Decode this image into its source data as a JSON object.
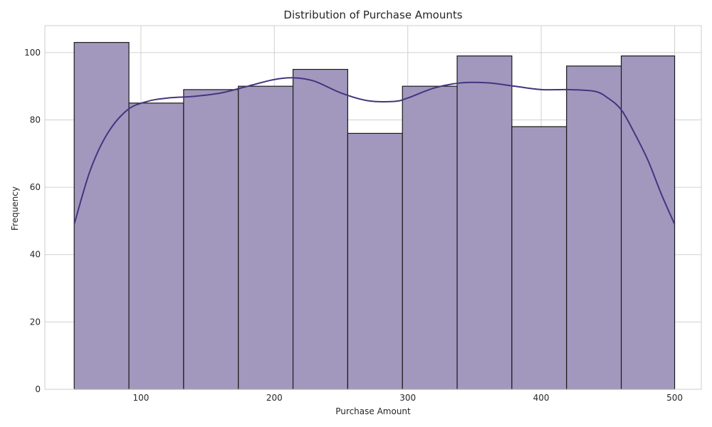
{
  "chart_data": {
    "type": "histogram",
    "title": "Distribution of Purchase Amounts",
    "xlabel": "Purchase Amount",
    "ylabel": "Frequency",
    "xlim": [
      28,
      520
    ],
    "ylim": [
      0,
      108
    ],
    "xticks": [
      100,
      200,
      300,
      400,
      500
    ],
    "yticks": [
      0,
      20,
      40,
      60,
      80,
      100
    ],
    "grid": true,
    "bins": [
      {
        "start": 50,
        "end": 91,
        "count": 103
      },
      {
        "start": 91,
        "end": 132,
        "count": 85
      },
      {
        "start": 132,
        "end": 173,
        "count": 89
      },
      {
        "start": 173,
        "end": 214,
        "count": 90
      },
      {
        "start": 214,
        "end": 255,
        "count": 95
      },
      {
        "start": 255,
        "end": 296,
        "count": 76
      },
      {
        "start": 296,
        "end": 337,
        "count": 90
      },
      {
        "start": 337,
        "end": 378,
        "count": 99
      },
      {
        "start": 378,
        "end": 419,
        "count": 78
      },
      {
        "start": 419,
        "end": 460,
        "count": 96
      },
      {
        "start": 460,
        "end": 500,
        "count": 99
      }
    ],
    "kde": {
      "x": [
        50,
        62,
        75,
        90,
        105,
        120,
        140,
        160,
        180,
        200,
        215,
        230,
        250,
        270,
        290,
        300,
        320,
        340,
        360,
        380,
        400,
        420,
        440,
        450,
        460,
        470,
        480,
        490,
        500
      ],
      "y": [
        49,
        65,
        76,
        83,
        85.5,
        86.5,
        87,
        88,
        90,
        92,
        92.5,
        91.5,
        88,
        85.7,
        85.5,
        86.5,
        89.5,
        91,
        91,
        90,
        89,
        89,
        88.5,
        86.5,
        83,
        76,
        68,
        58,
        49
      ]
    },
    "colors": {
      "bar_fill": "#a298be",
      "bar_edge": "#1a1a1a",
      "kde_line": "#45347f",
      "grid": "#d0d0d0",
      "frame": "#cccccc"
    }
  }
}
